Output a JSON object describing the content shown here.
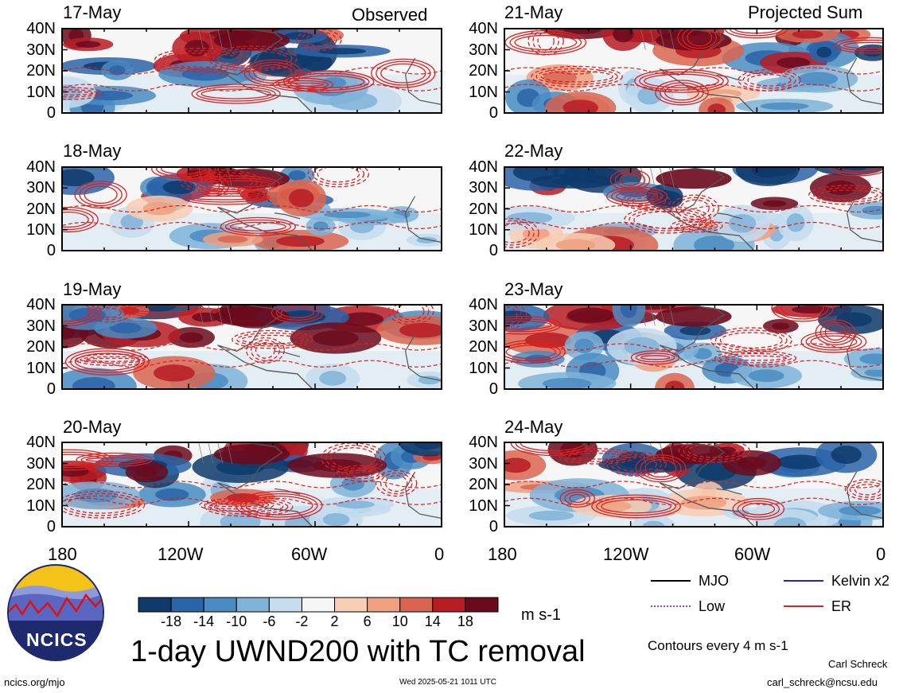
{
  "columns": [
    {
      "header": "Observed",
      "panels": [
        {
          "date": "17-May"
        },
        {
          "date": "18-May"
        },
        {
          "date": "19-May"
        },
        {
          "date": "20-May"
        }
      ]
    },
    {
      "header": "Projected Sum",
      "panels": [
        {
          "date": "21-May"
        },
        {
          "date": "22-May"
        },
        {
          "date": "23-May"
        },
        {
          "date": "24-May"
        }
      ]
    }
  ],
  "y_ticks": [
    "40N",
    "30N",
    "20N",
    "10N",
    "0"
  ],
  "x_ticks": [
    "180",
    "120W",
    "60W",
    "0"
  ],
  "colorbar": {
    "tick_labels": [
      "-18",
      "-14",
      "-10",
      "-6",
      "-2",
      "2",
      "6",
      "10",
      "14",
      "18"
    ],
    "colors": [
      "#0d3a6b",
      "#2a64a8",
      "#4a8cc2",
      "#7fb3d8",
      "#c4dcee",
      "#f6f6f6",
      "#f8cdb4",
      "#eea080",
      "#d96550",
      "#b71c25",
      "#6b0a1d"
    ],
    "unit": "m s-1"
  },
  "legend": {
    "items": [
      {
        "label": "MJO",
        "color": "#000000",
        "style": "solid"
      },
      {
        "label": "Kelvin x2",
        "color": "#2222cc",
        "style": "solid"
      },
      {
        "label": "Low",
        "color": "#a040e0",
        "style": "dotted"
      },
      {
        "label": "ER",
        "color": "#dd2020",
        "style": "solid"
      }
    ],
    "contour_note": "Contours every 4 m s-1"
  },
  "title": "1-day UWND200 with TC removal",
  "logo_text": "NCICS",
  "footer": {
    "url": "ncics.org/mjo",
    "timestamp": "Wed 2025-05-21 1011 UTC",
    "author": "Carl Schreck",
    "email": "carl_schreck@ncsu.edu"
  }
}
